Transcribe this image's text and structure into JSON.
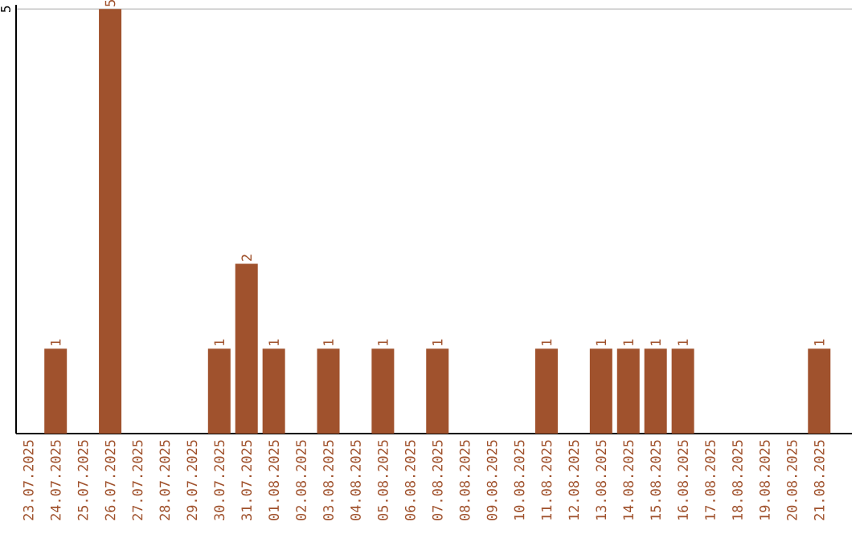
{
  "chart_data": {
    "type": "bar",
    "categories": [
      "23.07.2025",
      "24.07.2025",
      "25.07.2025",
      "26.07.2025",
      "27.07.2025",
      "28.07.2025",
      "29.07.2025",
      "30.07.2025",
      "31.07.2025",
      "01.08.2025",
      "02.08.2025",
      "03.08.2025",
      "04.08.2025",
      "05.08.2025",
      "06.08.2025",
      "07.08.2025",
      "08.08.2025",
      "09.08.2025",
      "10.08.2025",
      "11.08.2025",
      "12.08.2025",
      "13.08.2025",
      "14.08.2025",
      "15.08.2025",
      "16.08.2025",
      "17.08.2025",
      "18.08.2025",
      "19.08.2025",
      "20.08.2025",
      "21.08.2025"
    ],
    "values": [
      0,
      1,
      0,
      5,
      0,
      0,
      0,
      1,
      2,
      1,
      0,
      1,
      0,
      1,
      0,
      1,
      0,
      0,
      0,
      1,
      0,
      1,
      1,
      1,
      1,
      0,
      0,
      0,
      0,
      1
    ],
    "value_labels": [
      null,
      "1",
      null,
      "5",
      null,
      null,
      null,
      "1",
      "2",
      "1",
      null,
      "1",
      null,
      "1",
      null,
      "1",
      null,
      null,
      null,
      "1",
      null,
      "1",
      "1",
      "1",
      "1",
      null,
      null,
      null,
      null,
      "1"
    ],
    "color": "#a0522d",
    "ylim": [
      0,
      5.05
    ],
    "yticks": [
      5
    ],
    "grid": "y"
  }
}
